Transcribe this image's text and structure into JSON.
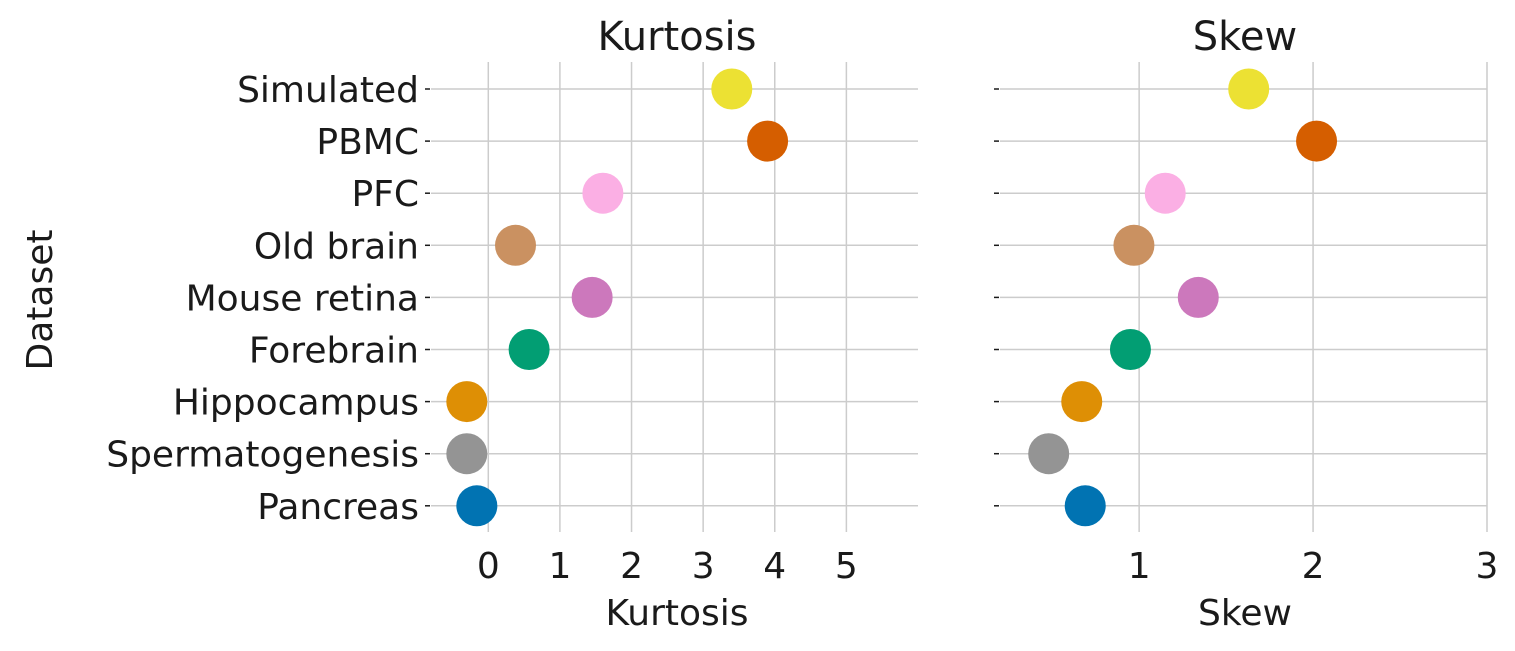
{
  "chart_data": [
    {
      "type": "scatter",
      "title": "Kurtosis",
      "xlabel": "Kurtosis",
      "ylabel": "Dataset",
      "xlim": [
        -0.8,
        6.0
      ],
      "xticks": [
        0,
        1,
        2,
        3,
        4,
        5
      ],
      "grid": true,
      "categories": [
        "Simulated",
        "PBMC",
        "PFC",
        "Old brain",
        "Mouse retina",
        "Forebrain",
        "Hippocampus",
        "Spermatogenesis",
        "Pancreas"
      ],
      "values": [
        3.4,
        3.9,
        1.6,
        0.38,
        1.45,
        0.57,
        -0.3,
        -0.3,
        -0.16
      ],
      "colors": [
        "#ece133",
        "#d55e00",
        "#fbafe4",
        "#ca9161",
        "#cc78bc",
        "#029e73",
        "#de8f05",
        "#949494",
        "#0173b2"
      ]
    },
    {
      "type": "scatter",
      "title": "Skew",
      "xlabel": "Skew",
      "ylabel": "",
      "xlim": [
        0.2,
        3.0
      ],
      "xticks": [
        1,
        2,
        3
      ],
      "grid": true,
      "categories": [
        "Simulated",
        "PBMC",
        "PFC",
        "Old brain",
        "Mouse retina",
        "Forebrain",
        "Hippocampus",
        "Spermatogenesis",
        "Pancreas"
      ],
      "values": [
        1.63,
        2.02,
        1.15,
        0.97,
        1.34,
        0.95,
        0.67,
        0.48,
        0.69
      ],
      "colors": [
        "#ece133",
        "#d55e00",
        "#fbafe4",
        "#ca9161",
        "#cc78bc",
        "#029e73",
        "#de8f05",
        "#949494",
        "#0173b2"
      ]
    }
  ]
}
